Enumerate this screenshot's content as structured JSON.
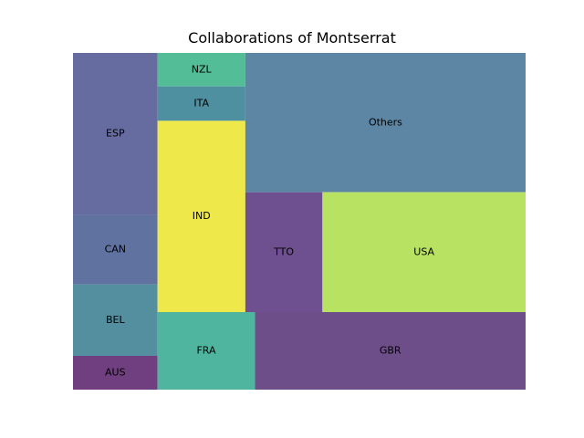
{
  "chart_data": {
    "type": "treemap",
    "title": "Collaborations of Montserrat",
    "items": [
      {
        "label": "AUS",
        "value": 3.4,
        "color": "#6f3f80"
      },
      {
        "label": "BEL",
        "value": 7.2,
        "color": "#538f9f"
      },
      {
        "label": "CAN",
        "value": 7.0,
        "color": "#5f72a0"
      },
      {
        "label": "ESP",
        "value": 16.3,
        "color": "#666c9f"
      },
      {
        "label": "FRA",
        "value": 9.0,
        "color": "#4fb59f"
      },
      {
        "label": "IND",
        "value": 20.0,
        "color": "#eee84a"
      },
      {
        "label": "ITA",
        "value": 3.6,
        "color": "#4e8fa0"
      },
      {
        "label": "NZL",
        "value": 3.5,
        "color": "#52bd96"
      },
      {
        "label": "GBR",
        "value": 25.0,
        "color": "#6d4e89"
      },
      {
        "label": "TTO",
        "value": 11.0,
        "color": "#6e4f8f"
      },
      {
        "label": "USA",
        "value": 29.0,
        "color": "#b8e262"
      },
      {
        "label": "Others",
        "value": 46.5,
        "color": "#5c86a3"
      }
    ]
  }
}
